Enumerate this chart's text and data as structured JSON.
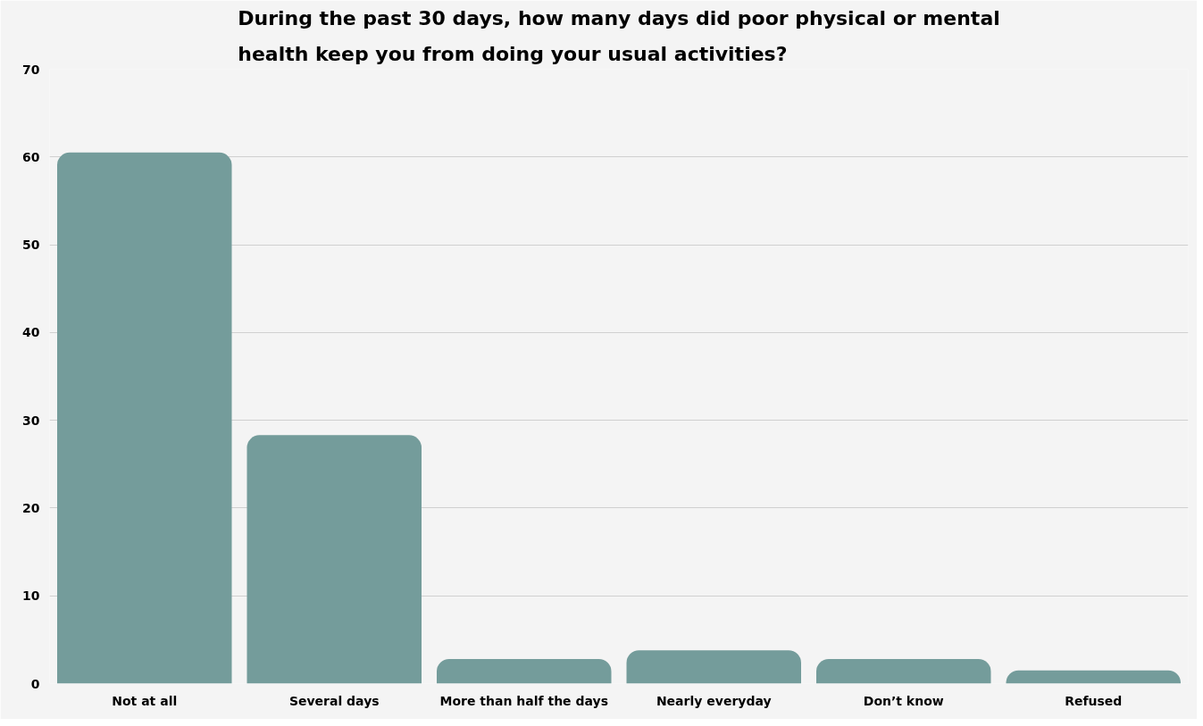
{
  "chart_data": {
    "type": "bar",
    "title": "During the past 30 days, how many days did poor physical or mental\nhealth keep you from doing your usual activities?",
    "categories": [
      "Not at all",
      "Several days",
      "More than half the days",
      "Nearly everyday",
      "Don’t know",
      "Refused"
    ],
    "values": [
      60.5,
      28.3,
      2.8,
      3.8,
      2.8,
      1.5
    ],
    "color": "#749c9b",
    "ylim": [
      0,
      70
    ],
    "yticks": [
      0,
      10,
      20,
      30,
      40,
      50,
      60,
      70
    ],
    "grid": "y"
  }
}
